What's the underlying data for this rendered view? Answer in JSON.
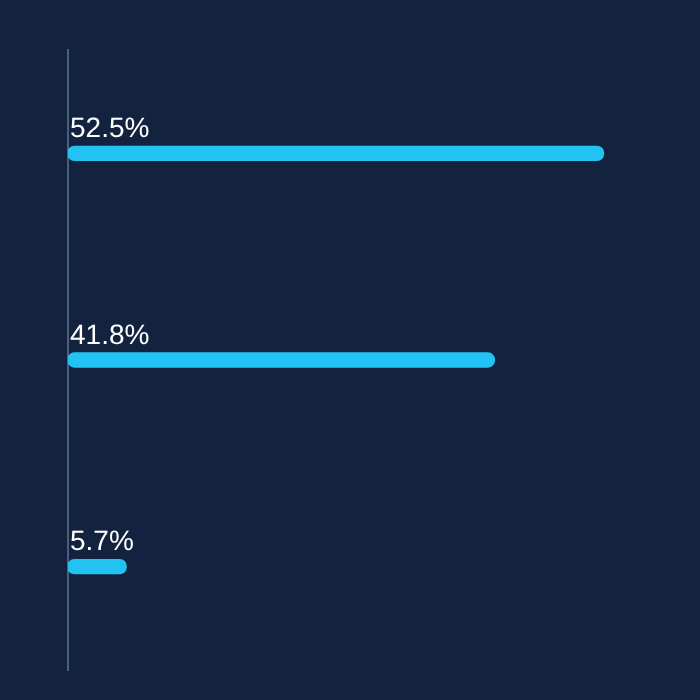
{
  "chart_data": {
    "type": "bar",
    "orientation": "horizontal",
    "categories": [
      null,
      null,
      null
    ],
    "values": [
      52.5,
      41.8,
      5.7
    ],
    "value_labels": [
      "52.5%",
      "41.8%",
      "5.7%"
    ],
    "color": "#22c3f2",
    "legend": false
  }
}
